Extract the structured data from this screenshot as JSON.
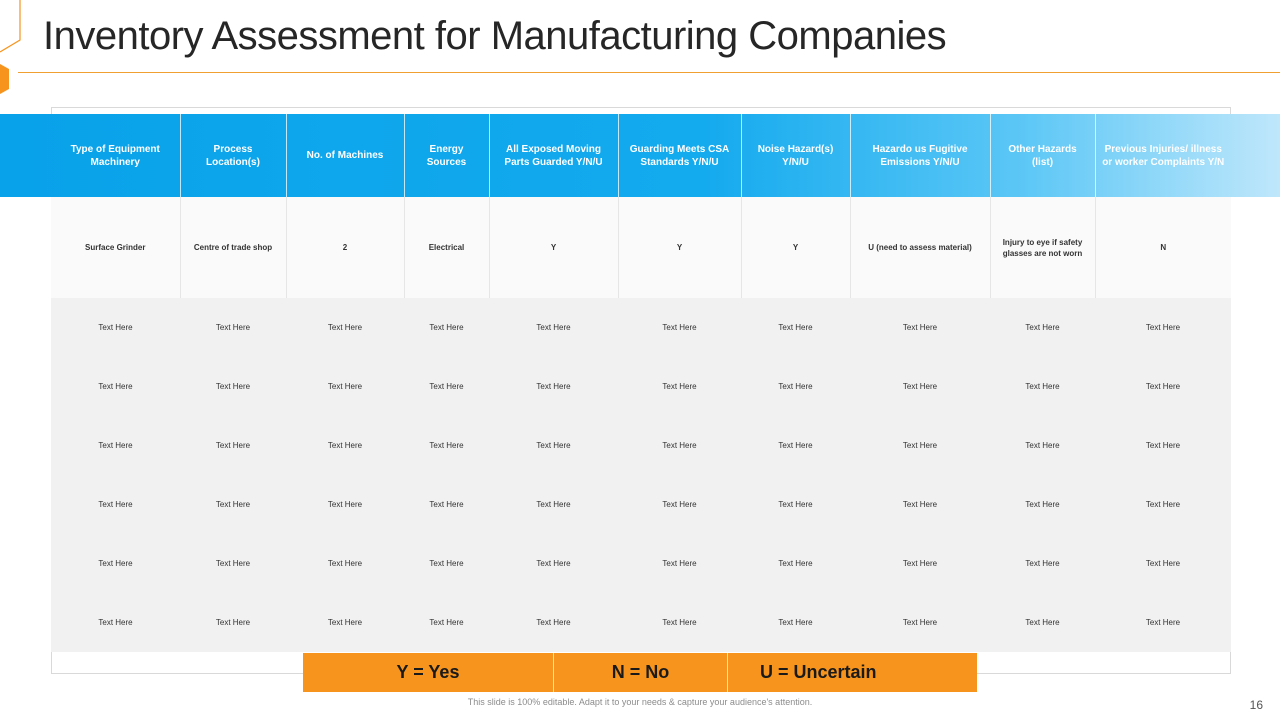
{
  "slide": {
    "title": "Inventory Assessment for Manufacturing Companies",
    "footer_note": "This slide is 100% editable. Adapt it to your needs & capture your audience's attention.",
    "page_number": "16",
    "colors": {
      "accent": "#f7941d",
      "header_blue": "#08a2ea",
      "header_light": "#bfe7fb"
    }
  },
  "table": {
    "headers": [
      "Type of Equipment Machinery",
      "Process Location(s)",
      "No. of Machines",
      "Energy Sources",
      "All Exposed Moving Parts Guarded Y/N/U",
      "Guarding Meets CSA Standards Y/N/U",
      "Noise Hazard(s) Y/N/U",
      "Hazardo us Fugitive Emissions Y/N/U",
      "Other Hazards (list)",
      "Previous Injuries/ illness or worker Complaints Y/N"
    ],
    "first_row": [
      "Surface Grinder",
      "Centre of trade shop",
      "2",
      "Electrical",
      "Y",
      "Y",
      "Y",
      "U (need to assess material)",
      "Injury to eye if safety glasses are not worn",
      "N"
    ],
    "rows": [
      [
        "Text Here",
        "Text Here",
        "Text Here",
        "Text Here",
        "Text Here",
        "Text Here",
        "Text Here",
        "Text Here",
        "Text Here",
        "Text Here"
      ],
      [
        "Text Here",
        "Text Here",
        "Text Here",
        "Text Here",
        "Text Here",
        "Text Here",
        "Text Here",
        "Text Here",
        "Text Here",
        "Text Here"
      ],
      [
        "Text Here",
        "Text Here",
        "Text Here",
        "Text Here",
        "Text Here",
        "Text Here",
        "Text Here",
        "Text Here",
        "Text Here",
        "Text Here"
      ],
      [
        "Text Here",
        "Text Here",
        "Text Here",
        "Text Here",
        "Text Here",
        "Text Here",
        "Text Here",
        "Text Here",
        "Text Here",
        "Text Here"
      ],
      [
        "Text Here",
        "Text Here",
        "Text Here",
        "Text Here",
        "Text Here",
        "Text Here",
        "Text Here",
        "Text Here",
        "Text Here",
        "Text Here"
      ],
      [
        "Text Here",
        "Text Here",
        "Text Here",
        "Text Here",
        "Text Here",
        "Text Here",
        "Text Here",
        "Text Here",
        "Text Here",
        "Text Here"
      ]
    ]
  },
  "legend": {
    "yes": "Y = Yes",
    "no": "N = No",
    "uncertain": "U = Uncertain"
  }
}
